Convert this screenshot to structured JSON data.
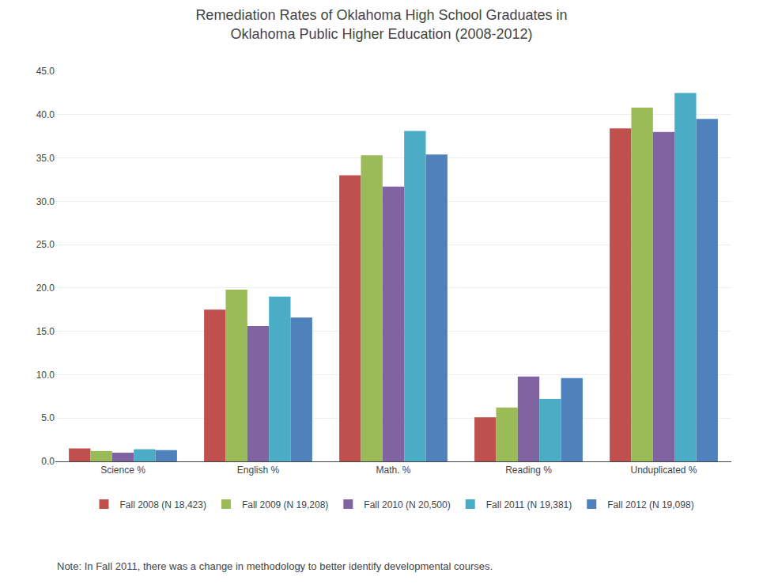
{
  "chart_data": {
    "type": "bar",
    "title": "Remediation Rates of Oklahoma High School Graduates in\nOklahoma Public Higher Education (2008-2012)",
    "categories": [
      "Science %",
      "English %",
      "Math. %",
      "Reading %",
      "Unduplicated %"
    ],
    "series": [
      {
        "name": "Fall 2008 (N 18,423)",
        "color": "#C0504D",
        "values": [
          1.5,
          17.5,
          33.0,
          5.1,
          38.4
        ]
      },
      {
        "name": "Fall 2009 (N 19,208)",
        "color": "#9BBB59",
        "values": [
          1.2,
          19.8,
          35.3,
          6.2,
          40.8
        ]
      },
      {
        "name": "Fall 2010 (N 20,500)",
        "color": "#8064A2",
        "values": [
          1.0,
          15.6,
          31.7,
          9.8,
          38.0
        ]
      },
      {
        "name": "Fall 2011 (N 19,381)",
        "color": "#4BACC6",
        "values": [
          1.4,
          19.0,
          38.1,
          7.2,
          42.5
        ]
      },
      {
        "name": "Fall 2012 (N 19,098)",
        "color": "#4F81BD",
        "values": [
          1.3,
          16.6,
          35.4,
          9.6,
          39.5
        ]
      }
    ],
    "ylim": [
      0,
      45
    ],
    "yticks": [
      {
        "value": 0,
        "label": "0.0"
      },
      {
        "value": 5,
        "label": "5.0"
      },
      {
        "value": 10,
        "label": "10.0"
      },
      {
        "value": 15,
        "label": "15.0"
      },
      {
        "value": 20,
        "label": "20.0"
      },
      {
        "value": 25,
        "label": "25.0"
      },
      {
        "value": 30,
        "label": "30.0"
      },
      {
        "value": 35,
        "label": "35.0"
      },
      {
        "value": 40,
        "label": "40.0"
      },
      {
        "value": 45,
        "label": "45.0"
      }
    ],
    "annotations": [
      "Note: In Fall 2011, there was a change in methodology to better identify developmental courses."
    ],
    "grid": true,
    "legend": "bottom"
  }
}
